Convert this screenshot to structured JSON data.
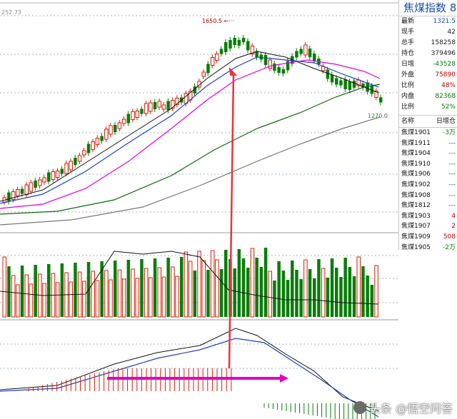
{
  "top_left_value": "252.73",
  "peak_label": "1650.5",
  "low_label": "1270.0",
  "quote_panel": {
    "title": "焦煤指数 8",
    "rows": [
      {
        "k": "最新",
        "v": "1321.5",
        "c": "blue"
      },
      {
        "k": "现手",
        "v": "42",
        "c": ""
      },
      {
        "k": "总手",
        "v": "158258",
        "c": ""
      },
      {
        "k": "持仓",
        "v": "379496",
        "c": ""
      },
      {
        "k": "日增",
        "v": "-43528",
        "c": "green"
      },
      {
        "k": "外盘",
        "v": "75890",
        "c": "red"
      },
      {
        "k": "比例",
        "v": "48%",
        "c": "red"
      },
      {
        "k": "内盘",
        "v": "82368",
        "c": "green"
      },
      {
        "k": "比例",
        "v": "52%",
        "c": "green"
      }
    ],
    "contract_header": {
      "name": "名称",
      "col": "日增仓"
    },
    "contracts": [
      {
        "name": "焦煤1901",
        "v": "-3万",
        "c": "green"
      },
      {
        "name": "焦煤1911",
        "v": "---",
        "c": ""
      },
      {
        "name": "焦煤1904",
        "v": "---",
        "c": ""
      },
      {
        "name": "焦煤1910",
        "v": "---",
        "c": ""
      },
      {
        "name": "焦煤1906",
        "v": "---",
        "c": ""
      },
      {
        "name": "焦煤1902",
        "v": "---",
        "c": ""
      },
      {
        "name": "焦煤1908",
        "v": "---",
        "c": ""
      },
      {
        "name": "焦煤1812",
        "v": "---",
        "c": ""
      },
      {
        "name": "焦煤1903",
        "v": "4",
        "c": "red"
      },
      {
        "name": "焦煤1907",
        "v": "2",
        "c": "red"
      },
      {
        "name": "焦煤1909",
        "v": "508",
        "c": "red"
      },
      {
        "name": "焦煤1905",
        "v": "-2万",
        "c": "green"
      }
    ]
  },
  "watermark": "头条 @悟空问答",
  "colors": {
    "up": "#d81e06",
    "down": "#0a7d0a",
    "ma5": "#111111",
    "ma10": "#1f3fbf",
    "ma20": "#e000e0",
    "ma60": "#0a6a0a",
    "ma120": "#777777",
    "arrow_red": "#e8353b",
    "arrow_magenta": "#e000c8"
  }
}
